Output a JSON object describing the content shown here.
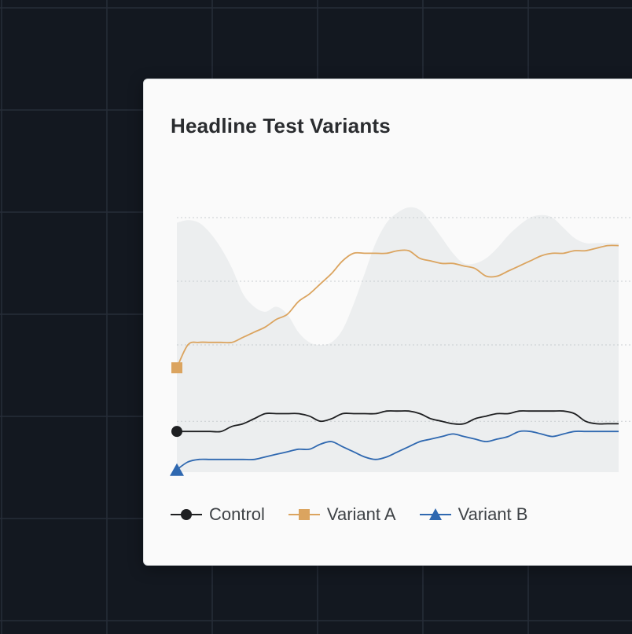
{
  "card": {
    "title": "Headline Test Variants"
  },
  "colors": {
    "background": "#131820",
    "grid": "#262d38",
    "card": "#fafafa",
    "band": "#eceeef",
    "control": "#1e1f21",
    "variant_a": "#dba45f",
    "variant_b": "#2f68b0"
  },
  "chart_data": {
    "type": "line",
    "title": "Headline Test Variants",
    "xlabel": "",
    "ylabel": "",
    "x": [
      0,
      1,
      2,
      3,
      4,
      5,
      6,
      7,
      8,
      9,
      10,
      11,
      12,
      13,
      14,
      15,
      16,
      17,
      18,
      19,
      20,
      21,
      22,
      23,
      24,
      25,
      26,
      27,
      28,
      29,
      30,
      31,
      32,
      33,
      34,
      35,
      36,
      37,
      38,
      39,
      40
    ],
    "ylim": [
      0,
      100
    ],
    "grid": true,
    "legend": "bottom",
    "series": [
      {
        "name": "Control",
        "marker": "circle",
        "values": [
          16,
          16,
          16,
          16,
          16,
          18,
          19,
          21,
          23,
          23,
          23,
          23,
          22,
          20,
          21,
          23,
          23,
          23,
          23,
          24,
          24,
          24,
          23,
          21,
          20,
          19,
          19,
          21,
          22,
          23,
          23,
          24,
          24,
          24,
          24,
          24,
          23,
          20,
          19,
          19,
          19
        ]
      },
      {
        "name": "Variant A",
        "marker": "square",
        "values": [
          41,
          50,
          51,
          51,
          51,
          51,
          53,
          55,
          57,
          60,
          62,
          67,
          70,
          74,
          78,
          83,
          86,
          86,
          86,
          86,
          87,
          87,
          84,
          83,
          82,
          82,
          81,
          80,
          77,
          77,
          79,
          81,
          83,
          85,
          86,
          86,
          87,
          87,
          88,
          89,
          89
        ]
      },
      {
        "name": "Variant B",
        "marker": "triangle",
        "values": [
          1,
          4,
          5,
          5,
          5,
          5,
          5,
          5,
          6,
          7,
          8,
          9,
          9,
          11,
          12,
          10,
          8,
          6,
          5,
          6,
          8,
          10,
          12,
          13,
          14,
          15,
          14,
          13,
          12,
          13,
          14,
          16,
          16,
          15,
          14,
          15,
          16,
          16,
          16,
          16,
          16
        ]
      }
    ],
    "band": {
      "upper": [
        98,
        99,
        98,
        94,
        88,
        80,
        70,
        65,
        63,
        65,
        62,
        55,
        51,
        50,
        51,
        56,
        66,
        78,
        90,
        98,
        102,
        104,
        103,
        98,
        92,
        86,
        82,
        82,
        84,
        88,
        93,
        97,
        100,
        101,
        100,
        96,
        92,
        90,
        90,
        90,
        90
      ]
    }
  }
}
